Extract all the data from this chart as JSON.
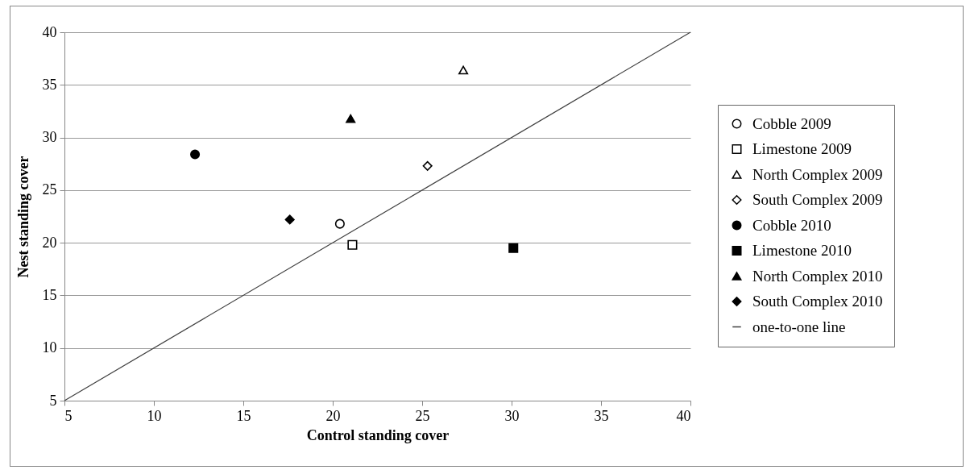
{
  "chart_data": {
    "type": "scatter",
    "xlabel": "Control standing cover",
    "ylabel": "Nest standing cover",
    "xlim": [
      5,
      40
    ],
    "ylim": [
      5,
      40
    ],
    "xticks": [
      5,
      10,
      15,
      20,
      25,
      30,
      35,
      40
    ],
    "yticks": [
      5,
      10,
      15,
      20,
      25,
      30,
      35,
      40
    ],
    "grid": "y",
    "legend": "right",
    "series": [
      {
        "name": "Cobble 2009",
        "color": "#ffffff",
        "marker": "circle",
        "x": [
          20.4
        ],
        "values": [
          21.8
        ]
      },
      {
        "name": "Limestone 2009",
        "color": "#ffffff",
        "marker": "square",
        "x": [
          21.1
        ],
        "values": [
          19.8
        ]
      },
      {
        "name": "North Complex 2009",
        "color": "#ffffff",
        "marker": "triangle",
        "x": [
          27.3
        ],
        "values": [
          36.4
        ]
      },
      {
        "name": "South Complex 2009",
        "color": "#ffffff",
        "marker": "diamond",
        "x": [
          25.3
        ],
        "values": [
          27.3
        ]
      },
      {
        "name": "Cobble 2010",
        "color": "#000000",
        "marker": "circle",
        "x": [
          12.3
        ],
        "values": [
          28.4
        ]
      },
      {
        "name": "Limestone 2010",
        "color": "#000000",
        "marker": "square",
        "x": [
          30.1
        ],
        "values": [
          19.5
        ]
      },
      {
        "name": "North Complex 2010",
        "color": "#000000",
        "marker": "triangle",
        "x": [
          21.0
        ],
        "values": [
          31.8
        ]
      },
      {
        "name": "South Complex 2010",
        "color": "#000000",
        "marker": "diamond",
        "x": [
          17.6
        ],
        "values": [
          22.2
        ]
      },
      {
        "name": "one-to-one line",
        "type": "line",
        "color": "#404040",
        "x": [
          5,
          40
        ],
        "values": [
          5,
          40
        ]
      }
    ]
  }
}
